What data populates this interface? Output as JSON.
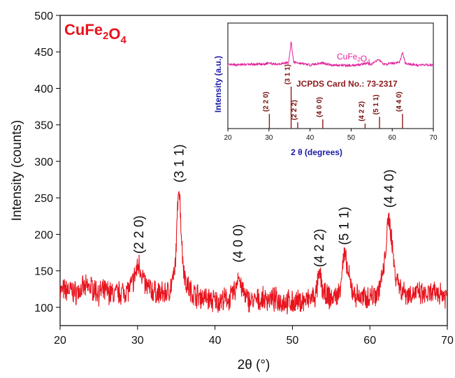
{
  "chart_data": [
    {
      "type": "line",
      "title": "",
      "xlabel": "2θ (°)",
      "ylabel": "Intensity (counts)",
      "xlim": [
        20,
        70
      ],
      "ylim": [
        75,
        500
      ],
      "xticks": [
        20,
        30,
        40,
        50,
        60,
        70
      ],
      "yticks": [
        100,
        150,
        200,
        250,
        300,
        350,
        400,
        450,
        500
      ],
      "grid": false,
      "colors": {
        "series": "#e8141e",
        "annotation": "#e8141e"
      },
      "series": [
        {
          "name": "CuFe2O4",
          "x": [
            20,
            21,
            22,
            23,
            24,
            25,
            26,
            27,
            28,
            29,
            29.5,
            30,
            30.2,
            30.5,
            31,
            32,
            33,
            34,
            34.8,
            35.1,
            35.3,
            35.5,
            35.8,
            36.2,
            37,
            38,
            39,
            40,
            41,
            42,
            42.7,
            43,
            43.3,
            44,
            45,
            46,
            47,
            48,
            49,
            50,
            51,
            52,
            53,
            53.3,
            53.6,
            54,
            55,
            56,
            56.4,
            56.7,
            57,
            57.5,
            58,
            59,
            60,
            61,
            61.8,
            62.2,
            62.5,
            62.8,
            63.2,
            64,
            65,
            66,
            67,
            68,
            69,
            70
          ],
          "y": [
            122,
            124,
            120,
            126,
            128,
            120,
            122,
            118,
            121,
            125,
            138,
            155,
            160,
            148,
            130,
            122,
            118,
            121,
            145,
            210,
            275,
            240,
            170,
            135,
            120,
            115,
            112,
            108,
            110,
            112,
            125,
            148,
            130,
            112,
            108,
            110,
            112,
            110,
            108,
            106,
            108,
            110,
            115,
            135,
            145,
            118,
            112,
            118,
            150,
            172,
            158,
            130,
            118,
            112,
            115,
            120,
            150,
            200,
            223,
            195,
            150,
            125,
            118,
            120,
            116,
            118,
            120,
            115
          ]
        }
      ],
      "annotations": [
        {
          "label": "CuFe2O4",
          "type": "title-tag"
        },
        {
          "label": "(2 2 0)",
          "x": 30.2
        },
        {
          "label": "(3 1 1)",
          "x": 35.4
        },
        {
          "label": "(4 0 0)",
          "x": 43.0
        },
        {
          "label": "(4 2 2)",
          "x": 53.5
        },
        {
          "label": "(5 1 1)",
          "x": 56.7
        },
        {
          "label": "(4 4 0)",
          "x": 62.5
        }
      ]
    },
    {
      "type": "line",
      "role": "inset",
      "xlabel": "2 θ (degrees)",
      "ylabel": "Intensity (a.u.)",
      "xlim": [
        20,
        70
      ],
      "xticks": [
        20,
        30,
        40,
        50,
        60,
        70
      ],
      "legend": "CuFe2O4",
      "card_label": "JCPDS Card No.: 73-2317",
      "colors": {
        "pattern": "#e0229a",
        "reference": "#8b1a1a",
        "axis_label": "#1a1aa6"
      },
      "series": [
        {
          "name": "CuFe2O4",
          "x": [
            20,
            25,
            29,
            30,
            31,
            34.8,
            35.4,
            36,
            40,
            43,
            45,
            50,
            53.5,
            55,
            56.7,
            58,
            61.8,
            62.5,
            63.2,
            66,
            70
          ],
          "y": [
            0.1,
            0.12,
            0.12,
            0.2,
            0.12,
            0.18,
            0.95,
            0.2,
            0.1,
            0.18,
            0.1,
            0.08,
            0.15,
            0.12,
            0.3,
            0.12,
            0.2,
            0.55,
            0.15,
            0.1,
            0.1
          ]
        }
      ],
      "reference_lines": [
        {
          "x": 30.1,
          "label": "(2 2 0)",
          "height": 0.35
        },
        {
          "x": 35.4,
          "label": "(3 1 1)",
          "height": 1.0
        },
        {
          "x": 37.0,
          "label": "(2 2 2)",
          "height": 0.15
        },
        {
          "x": 43.1,
          "label": "(4 0 0)",
          "height": 0.22
        },
        {
          "x": 53.4,
          "label": "(4 2 2)",
          "height": 0.12
        },
        {
          "x": 56.9,
          "label": "(5 1 1)",
          "height": 0.28
        },
        {
          "x": 62.5,
          "label": "(4 4 0)",
          "height": 0.35
        }
      ]
    }
  ]
}
